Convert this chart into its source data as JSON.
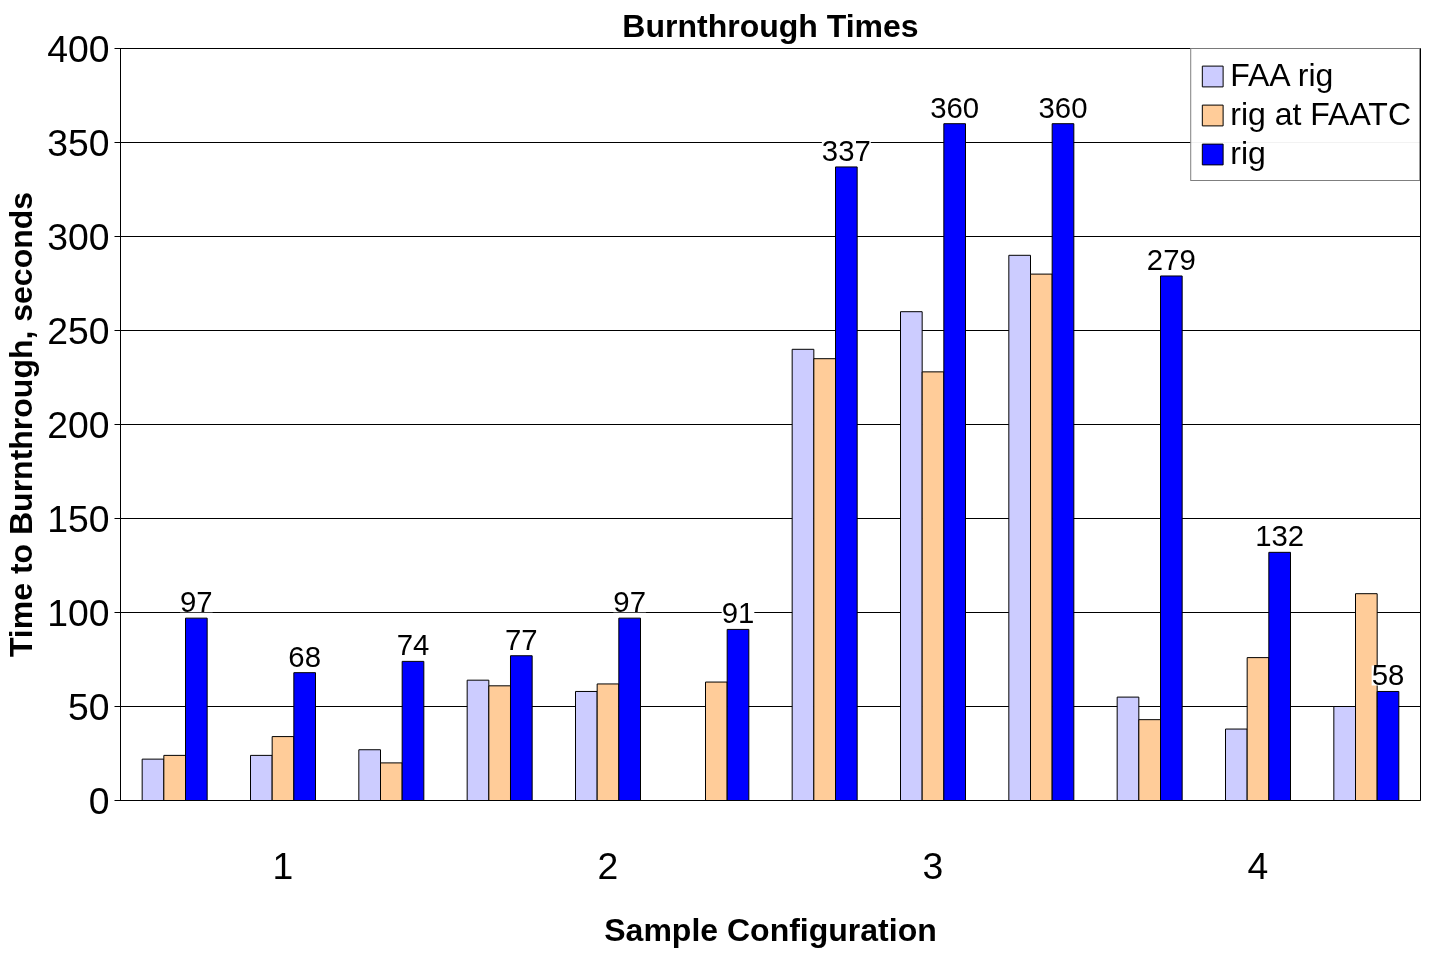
{
  "chart_data": {
    "type": "bar",
    "title": "Burnthrough Times",
    "xlabel": "Sample Configuration",
    "ylabel": "Time to Burnthrough, seconds",
    "categories": [
      null,
      null,
      null,
      null,
      null,
      null,
      null,
      null,
      null,
      null,
      null,
      null
    ],
    "annotations": [
      "1",
      "2",
      "3",
      "4"
    ],
    "ylim": [
      0,
      400
    ],
    "yticks": [
      0,
      50,
      100,
      150,
      200,
      250,
      300,
      350,
      400
    ],
    "grid": "y",
    "legend": "top right",
    "series": [
      {
        "name": "FAA rig",
        "color": "#ccccff",
        "values": [
          22,
          24,
          27,
          64,
          58,
          null,
          240,
          260,
          290,
          55,
          38,
          50
        ]
      },
      {
        "name": "rig at FAATC",
        "color": "#ffcc99",
        "values": [
          24,
          34,
          20,
          61,
          62,
          63,
          235,
          228,
          280,
          43,
          76,
          110
        ]
      },
      {
        "name": "rig",
        "color": "#0000ff",
        "values": [
          97,
          68,
          74,
          77,
          97,
          91,
          337,
          360,
          360,
          279,
          132,
          58
        ],
        "value_labels": [
          "97",
          "68",
          "74",
          "77",
          "97",
          "91",
          "337",
          "360",
          "360",
          "279",
          "132",
          "58"
        ]
      }
    ]
  }
}
